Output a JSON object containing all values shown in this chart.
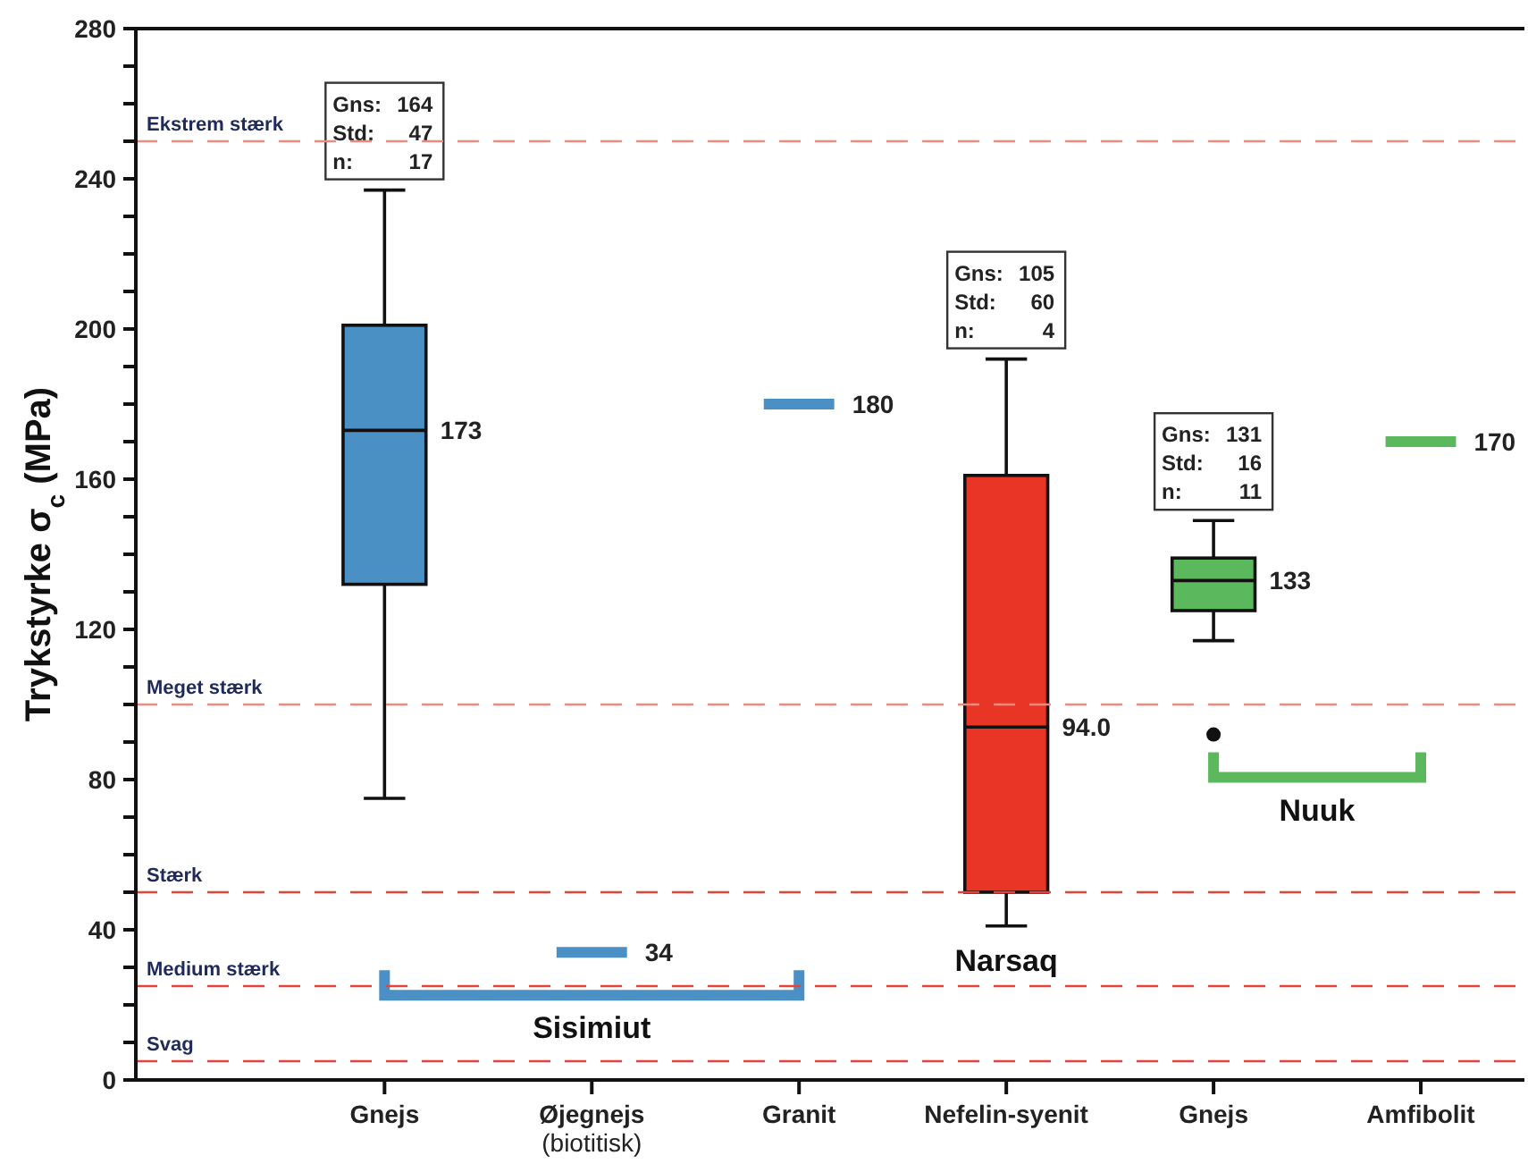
{
  "chart_data": {
    "type": "box",
    "ylabel": "Trykstyrke σ$_{c}$ (MPa)",
    "categories": [
      "Gnejs",
      "Øjegnejs (biotitisk)",
      "Granit",
      "Nefelin-syenit",
      "Gnejs",
      "Amfibolit"
    ],
    "series": [
      {
        "color": "#4a90c4",
        "boxes": [
          {
            "low": 75,
            "q1": 132,
            "median": 173,
            "q3": 201,
            "high": 237
          },
          {
            "low": 34,
            "q1": 34,
            "median": 34,
            "q3": 34,
            "high": 34
          },
          {
            "low": 180,
            "q1": 180,
            "median": 180,
            "q3": 180,
            "high": 180
          },
          null,
          null,
          null
        ],
        "value_labels": [
          "173",
          "34",
          "180",
          null,
          null,
          null
        ]
      },
      {
        "color": "#e83526",
        "boxes": [
          null,
          null,
          null,
          {
            "low": 41,
            "q1": 50,
            "median": 94,
            "q3": 161,
            "high": 192
          },
          null,
          null
        ],
        "value_labels": [
          null,
          null,
          null,
          "94.0",
          null,
          null
        ]
      },
      {
        "color": "#5cb85c",
        "boxes": [
          null,
          null,
          null,
          null,
          {
            "low": 117,
            "q1": 125,
            "median": 133,
            "q3": 139,
            "high": 149,
            "outliers": [
              92
            ]
          },
          {
            "low": 170,
            "q1": 170,
            "median": 170,
            "q3": 170,
            "high": 170
          }
        ],
        "value_labels": [
          null,
          null,
          null,
          null,
          "133",
          "170"
        ]
      }
    ],
    "ylim": [
      0,
      280
    ],
    "yticks": [
      0,
      {
        "value": 10,
        "label": null
      },
      {
        "value": 20,
        "label": null
      },
      {
        "value": 30,
        "label": null
      },
      40,
      {
        "value": 50,
        "label": null
      },
      {
        "value": 60,
        "label": null
      },
      {
        "value": 70,
        "label": null
      },
      80,
      {
        "value": 90,
        "label": null
      },
      {
        "value": 100,
        "label": null
      },
      {
        "value": 110,
        "label": null
      },
      120,
      {
        "value": 130,
        "label": null
      },
      {
        "value": 140,
        "label": null
      },
      {
        "value": 150,
        "label": null
      },
      160,
      {
        "value": 170,
        "label": null
      },
      {
        "value": 180,
        "label": null
      },
      {
        "value": 190,
        "label": null
      },
      200,
      {
        "value": 210,
        "label": null
      },
      {
        "value": 220,
        "label": null
      },
      {
        "value": 230,
        "label": null
      },
      240,
      {
        "value": 250,
        "label": null
      },
      {
        "value": 260,
        "label": null
      },
      {
        "value": 270,
        "label": null
      },
      280
    ],
    "ref_lines": [
      {
        "axis": "y",
        "value": 250,
        "label": "Ekstrem stærk",
        "color": "#f08a80",
        "line_style": "dashed"
      },
      {
        "axis": "y",
        "value": 100,
        "label": "Meget stærk",
        "color": "#f08a80",
        "line_style": "dashed"
      },
      {
        "axis": "y",
        "value": 50,
        "label": "Stærk",
        "color": "#e8433a",
        "line_style": "dashed"
      },
      {
        "axis": "y",
        "value": 25,
        "label": "Medium stærk",
        "color": "#e8433a",
        "line_style": "dashed"
      },
      {
        "axis": "y",
        "value": 5,
        "label": "Svag",
        "color": "#e8433a",
        "line_style": "dashed"
      }
    ],
    "annotations": [
      "Gns: 164\nStd: 47\nn: 17",
      "Gns: 105\nStd: 60\nn: 4",
      "Gns: 131\nStd: 16\nn: 11",
      "Sisimiut",
      "Narsaq",
      "Nuuk"
    ]
  }
}
